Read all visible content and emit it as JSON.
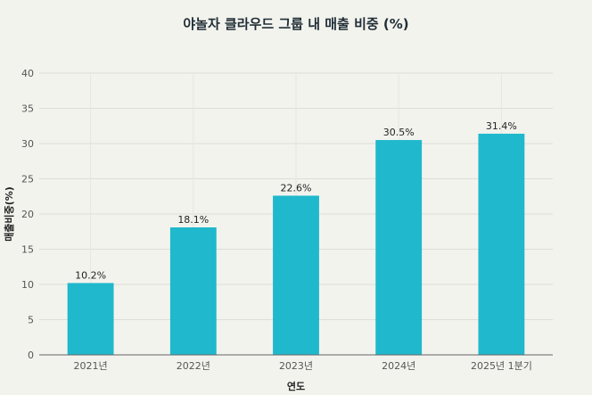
{
  "chart_data": {
    "type": "bar",
    "title": "야놀자 클라우드 그룹 내 매출 비중 (%)",
    "xlabel": "연도",
    "ylabel": "매출비중(%)",
    "categories": [
      "2021년",
      "2022년",
      "2023년",
      "2024년",
      "2025년 1분기"
    ],
    "values": [
      10.2,
      18.1,
      22.6,
      30.5,
      31.4
    ],
    "data_labels": [
      "10.2%",
      "18.1%",
      "22.6%",
      "30.5%",
      "31.4%"
    ],
    "ylim": [
      0,
      40
    ],
    "yticks": [
      "0",
      "5",
      "10",
      "15",
      "20",
      "25",
      "30",
      "35",
      "40"
    ],
    "grid": true,
    "bar_color": "#20b8cc"
  }
}
